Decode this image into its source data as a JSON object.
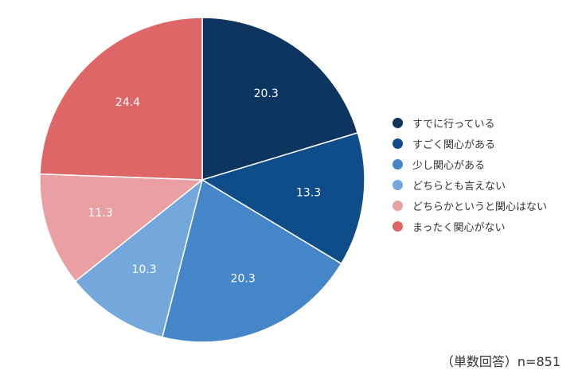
{
  "chart_data": {
    "type": "pie",
    "title": "",
    "categories": [
      "すでに行っている",
      "すごく関心がある",
      "少し関心がある",
      "どちらとも言えない",
      "どちらかというと関心はない",
      "まったく関心がない"
    ],
    "values": [
      20.3,
      13.3,
      20.3,
      10.3,
      11.3,
      24.4
    ],
    "value_labels": [
      "20.3",
      "13.3",
      "20.3",
      "10.3",
      "11.3",
      "24.4"
    ],
    "colors": [
      "#0d3560",
      "#0f4c8a",
      "#4586c8",
      "#74a8dc",
      "#eaa0a2",
      "#df6666"
    ],
    "start_angle_deg": 0,
    "direction": "clockwise",
    "legend_position": "right"
  },
  "note": "（単数回答）n=851"
}
